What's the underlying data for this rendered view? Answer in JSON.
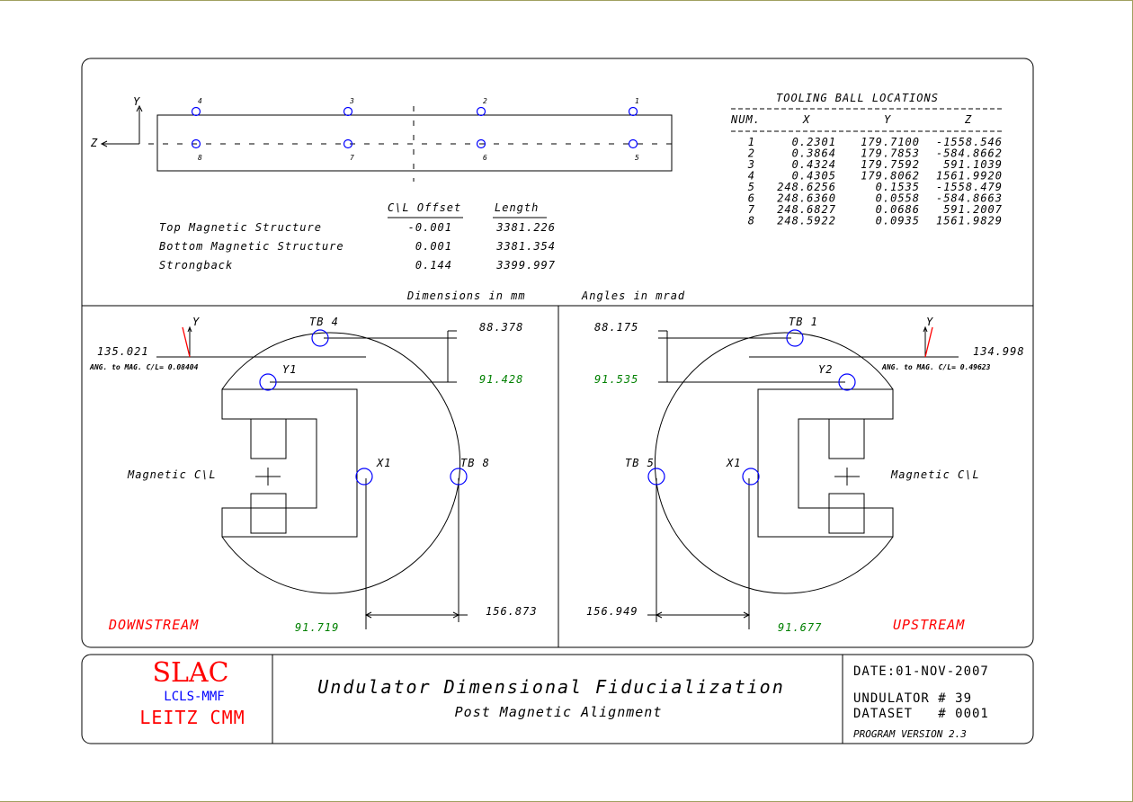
{
  "top_view": {
    "axis_y": "Y",
    "axis_z": "Z",
    "top_ball_labels": [
      "4",
      "3",
      "2",
      "1"
    ],
    "bottom_ball_labels": [
      "8",
      "7",
      "6",
      "5"
    ]
  },
  "offsets": {
    "header_offset": "C\\L Offset",
    "header_length": "Length",
    "rows": [
      {
        "label": "Top Magnetic Structure",
        "offset": "-0.001",
        "length": "3381.226"
      },
      {
        "label": "Bottom Magnetic Structure",
        "offset": "0.001",
        "length": "3381.354"
      },
      {
        "label": "Strongback",
        "offset": "0.144",
        "length": "3399.997"
      }
    ],
    "units_dim": "Dimensions in mm",
    "units_ang": "Angles in mrad"
  },
  "tooling": {
    "title": "TOOLING BALL LOCATIONS",
    "headers": [
      "NUM.",
      "X",
      "Y",
      "Z"
    ],
    "rows": [
      [
        "1",
        "0.2301",
        "179.7100",
        "-1558.546"
      ],
      [
        "2",
        "0.3864",
        "179.7853",
        "-584.8662"
      ],
      [
        "3",
        "0.4324",
        "179.7592",
        "591.1039"
      ],
      [
        "4",
        "0.4305",
        "179.8062",
        "1561.9920"
      ],
      [
        "5",
        "248.6256",
        "0.1535",
        "-1558.479"
      ],
      [
        "6",
        "248.6360",
        "0.0558",
        "-584.8663"
      ],
      [
        "7",
        "248.6827",
        "0.0686",
        "591.2007"
      ],
      [
        "8",
        "248.5922",
        "0.0935",
        "1561.9829"
      ]
    ]
  },
  "downstream": {
    "label": "DOWNSTREAM",
    "y_axis": "Y",
    "tb_top": "TB 4",
    "tb_side": "TB 8",
    "y_ball": "Y1",
    "x_ball": "X1",
    "mag_cl": "Magnetic C\\L",
    "height": "135.021",
    "ang_text": "ANG. to MAG. C/L=  0.08404",
    "dim_top": "88.378",
    "dim_y": "91.428",
    "dim_side": "156.873",
    "dim_x": "91.719"
  },
  "upstream": {
    "label": "UPSTREAM",
    "y_axis": "Y",
    "tb_top": "TB 1",
    "tb_side": "TB 5",
    "y_ball": "Y2",
    "x_ball": "X1",
    "mag_cl": "Magnetic C\\L",
    "height": "134.998",
    "ang_text": "ANG. to MAG. C/L=  0.49623",
    "dim_top": "88.175",
    "dim_y": "91.535",
    "dim_side": "156.949",
    "dim_x": "91.677"
  },
  "title_block": {
    "org": "SLAC",
    "dept": "LCLS-MMF",
    "machine": "LEITZ CMM",
    "title": "Undulator Dimensional Fiducialization",
    "subtitle": "Post Magnetic Alignment",
    "date": "DATE:01-NOV-2007",
    "undulator": "UNDULATOR # 39",
    "dataset": "DATASET   # 0001",
    "program": "PROGRAM VERSION 2.3"
  },
  "colors": {
    "ball": "#0000ff",
    "measured": "#008000",
    "label_red": "#ff0000",
    "org_blue": "#0000ff"
  }
}
